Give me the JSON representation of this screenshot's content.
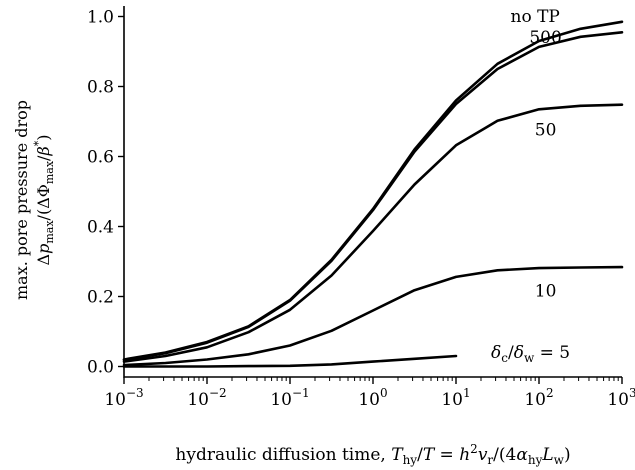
{
  "chart_data": {
    "type": "line",
    "x_scale": "log",
    "grid": false,
    "xlim": [
      0.001,
      1000
    ],
    "ylim": [
      -0.03,
      1.03
    ],
    "xlabel": "hydraulic diffusion time, T_hy/T = h^2 v_r/(4α_hy L_w)",
    "ylabel": "max. pore pressure drop Δp_max/(ΔΦ_max/β*)",
    "y_ticks": [
      "0.0",
      "0.2",
      "0.4",
      "0.6",
      "0.8",
      "1.0"
    ],
    "x_ticks": [
      "10^-3",
      "10^-2",
      "10^-1",
      "10^0",
      "10^1",
      "10^2",
      "10^3"
    ],
    "series": [
      {
        "name": "no TP",
        "x": [
          0.001,
          0.00316,
          0.01,
          0.0316,
          0.1,
          0.316,
          1,
          3.16,
          10,
          31.6,
          100,
          316,
          1000
        ],
        "y": [
          0.02,
          0.04,
          0.07,
          0.115,
          0.19,
          0.305,
          0.45,
          0.62,
          0.76,
          0.865,
          0.93,
          0.965,
          0.985
        ]
      },
      {
        "name": "500",
        "x": [
          0.001,
          0.00316,
          0.01,
          0.0316,
          0.1,
          0.316,
          1,
          3.16,
          10,
          31.6,
          100,
          316,
          1000
        ],
        "y": [
          0.019,
          0.038,
          0.068,
          0.113,
          0.188,
          0.302,
          0.447,
          0.614,
          0.75,
          0.85,
          0.913,
          0.942,
          0.955
        ]
      },
      {
        "name": "50",
        "x": [
          0.001,
          0.00316,
          0.01,
          0.0316,
          0.1,
          0.316,
          1,
          3.16,
          10,
          31.6,
          100,
          316,
          1000
        ],
        "y": [
          0.014,
          0.03,
          0.055,
          0.098,
          0.162,
          0.26,
          0.387,
          0.52,
          0.632,
          0.702,
          0.735,
          0.745,
          0.748
        ]
      },
      {
        "name": "10",
        "x": [
          0.001,
          0.00316,
          0.01,
          0.0316,
          0.1,
          0.316,
          1,
          3.16,
          10,
          31.6,
          100,
          316,
          1000
        ],
        "y": [
          0.004,
          0.01,
          0.02,
          0.035,
          0.06,
          0.102,
          0.16,
          0.218,
          0.256,
          0.275,
          0.281,
          0.283,
          0.284
        ]
      },
      {
        "name": "δc/δw = 5",
        "x": [
          0.001,
          0.00316,
          0.01,
          0.0316,
          0.1,
          0.316,
          1,
          3.16,
          10
        ],
        "y": [
          0.0,
          0.0,
          0.0,
          0.001,
          0.002,
          0.006,
          0.014,
          0.022,
          0.03
        ]
      }
    ],
    "annotations": [
      {
        "series": "no TP",
        "text": "no TP",
        "x": 90,
        "y": 0.985
      },
      {
        "series": "500",
        "text": "500",
        "x": 120,
        "y": 0.925
      },
      {
        "series": "50",
        "text": "50",
        "x": 120,
        "y": 0.66
      },
      {
        "series": "10",
        "text": "10",
        "x": 120,
        "y": 0.2
      },
      {
        "series": "δc/δw = 5",
        "text": "δc/δw = 5",
        "x": 20,
        "y": 0.03
      }
    ]
  }
}
